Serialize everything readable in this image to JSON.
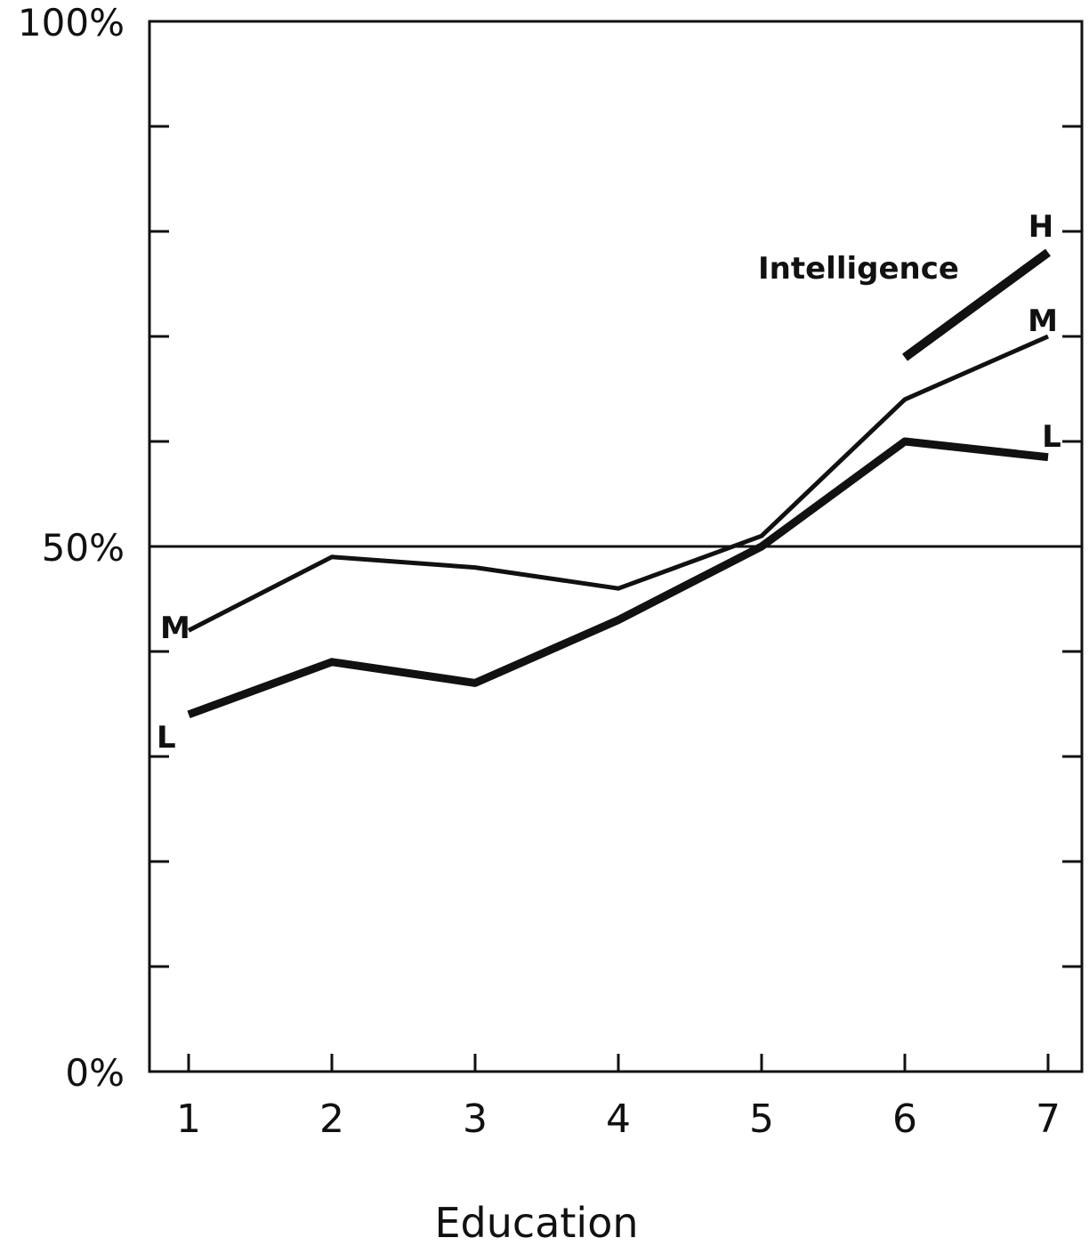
{
  "chart_data": {
    "type": "line",
    "xlabel": "Education",
    "legend_title": "Intelligence",
    "x": [
      1,
      2,
      3,
      4,
      5,
      6,
      7
    ],
    "x_tick_labels": [
      "1",
      "2",
      "3",
      "4",
      "5",
      "6",
      "7"
    ],
    "y_tick_labels": [
      "0%",
      "50%",
      "100%"
    ],
    "y_tick_values": [
      0,
      50,
      100
    ],
    "xlim": [
      0.75,
      7.25
    ],
    "ylim": [
      0,
      100
    ],
    "reference_line": 50,
    "grid": false,
    "series": [
      {
        "name": "L",
        "x": [
          1,
          2,
          3,
          4,
          5,
          6,
          7
        ],
        "values": [
          34,
          39,
          37,
          43,
          50,
          60,
          58.5
        ],
        "labels": [
          "L",
          "L"
        ]
      },
      {
        "name": "M",
        "x": [
          1,
          2,
          3,
          4,
          5,
          6,
          7
        ],
        "values": [
          42,
          49,
          48,
          46,
          51,
          64,
          70
        ],
        "labels": [
          "M",
          "M"
        ]
      },
      {
        "name": "H",
        "x": [
          6,
          7
        ],
        "values": [
          68,
          78
        ],
        "labels": [
          "H"
        ]
      }
    ]
  }
}
